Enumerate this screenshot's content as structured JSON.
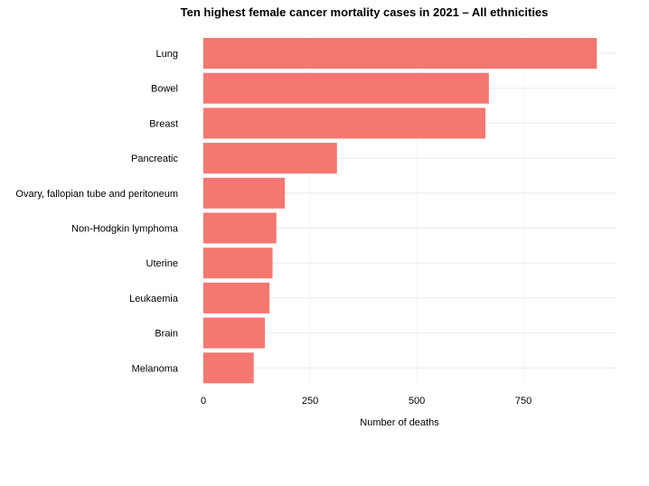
{
  "chart_data": {
    "type": "bar",
    "orientation": "horizontal",
    "title": "Ten highest female cancer mortality cases in 2021 – All ethnicities",
    "xlabel": "Number of deaths",
    "ylabel": "",
    "categories": [
      "Lung",
      "Bowel",
      "Breast",
      "Pancreatic",
      "Ovary, fallopian tube and peritoneum",
      "Non-Hodgkin lymphoma",
      "Uterine",
      "Leukaemia",
      "Brain",
      "Melanoma"
    ],
    "values": [
      922,
      669,
      661,
      313,
      191,
      171,
      162,
      155,
      144,
      118
    ],
    "xlim": [
      0,
      968
    ],
    "xticks": [
      0,
      250,
      500,
      750
    ],
    "xtick_labels": [
      "0",
      "250",
      "500",
      "750"
    ],
    "grid": true,
    "bar_color": "#F47771"
  }
}
